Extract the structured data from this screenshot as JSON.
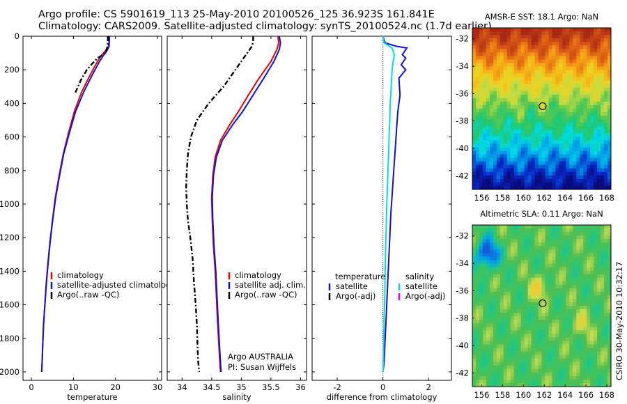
{
  "header": {
    "line1": "Argo profile: CS 5901619_113 25-May-2010 20100526_125 36.923S 161.841E",
    "line2": "Climatology: CARS2009. Satellite-adjusted climatology: synTS_20100524.nc (1.7d earlier)"
  },
  "stamp": "CSIRO 30-May-2010 10:32:17",
  "colors": {
    "climatology": "#ee0000",
    "satellite": "#1010dd",
    "argo": "#000000",
    "sal_satellite": "#00e0e0",
    "sal_argo": "#ee00ee"
  },
  "chart_data": [
    {
      "type": "line",
      "id": "temperature",
      "xlabel": "temperature",
      "ylabel": "",
      "xlim": [
        -2,
        31
      ],
      "ylim": [
        2050,
        0
      ],
      "xticks": [
        0,
        10,
        20,
        30
      ],
      "yticks": [
        0,
        200,
        400,
        600,
        800,
        1000,
        1200,
        1400,
        1600,
        1800,
        2000
      ],
      "legend": {
        "placement": "lower-right",
        "entries": [
          "climatology",
          "satellite-adjusted climatology",
          "Argo(..raw -QC)"
        ]
      },
      "series": [
        {
          "name": "climatology",
          "color": "#ee0000",
          "style": "solid",
          "x": [
            18.6,
            18.4,
            17.5,
            16.5,
            15.5,
            14.0,
            12.0,
            10.2,
            8.8,
            7.6,
            6.6,
            5.7,
            5.0,
            4.4,
            3.9,
            3.5,
            3.2,
            2.9,
            2.7,
            2.55,
            2.45
          ],
          "y": [
            0,
            60,
            90,
            120,
            160,
            230,
            330,
            450,
            580,
            700,
            830,
            960,
            1100,
            1230,
            1360,
            1480,
            1600,
            1720,
            1840,
            1950,
            2000
          ]
        },
        {
          "name": "satellite-adjusted climatology",
          "color": "#1010dd",
          "style": "solid",
          "x": [
            18.6,
            18.5,
            17.9,
            17.0,
            16.0,
            14.5,
            12.5,
            10.5,
            9.0,
            7.7,
            6.7,
            5.8,
            5.05,
            4.45,
            3.95,
            3.55,
            3.2,
            2.9,
            2.7,
            2.55,
            2.45
          ],
          "y": [
            0,
            60,
            90,
            120,
            160,
            230,
            330,
            450,
            580,
            700,
            830,
            960,
            1100,
            1230,
            1360,
            1480,
            1600,
            1720,
            1840,
            1950,
            2000
          ]
        },
        {
          "name": "Argo(..raw -QC)",
          "color": "#000000",
          "style": "dashdot",
          "x": [
            18.2,
            18.2,
            18.1,
            17.8,
            17.0,
            15.8,
            14.6,
            13.2,
            11.8,
            10.4
          ],
          "y": [
            0,
            30,
            60,
            90,
            110,
            130,
            160,
            200,
            260,
            340
          ]
        }
      ]
    },
    {
      "type": "line",
      "id": "salinity",
      "xlabel": "salinity",
      "ylabel": "",
      "xlim": [
        33.75,
        36.1
      ],
      "ylim": [
        2050,
        0
      ],
      "xticks": [
        34,
        34.5,
        35,
        35.5,
        36
      ],
      "legend": {
        "placement": "lower-right",
        "entries": [
          "climatology",
          "satellite adj. clim.",
          "Argo(..raw -QC)"
        ]
      },
      "annotation": [
        "Argo AUSTRALIA",
        "PI: Susan Wijffels"
      ],
      "series": [
        {
          "name": "climatology",
          "color": "#ee0000",
          "style": "solid",
          "x": [
            35.62,
            35.63,
            35.6,
            35.5,
            35.3,
            35.12,
            34.95,
            34.8,
            34.65,
            34.56,
            34.52,
            34.5,
            34.51,
            34.53,
            34.56,
            34.58,
            34.6,
            34.62,
            34.64,
            34.65
          ],
          "y": [
            0,
            40,
            80,
            150,
            250,
            350,
            450,
            530,
            620,
            720,
            830,
            960,
            1100,
            1250,
            1400,
            1550,
            1700,
            1830,
            1950,
            2000
          ]
        },
        {
          "name": "satellite adj. clim.",
          "color": "#1010dd",
          "style": "solid",
          "x": [
            35.64,
            35.66,
            35.64,
            35.55,
            35.38,
            35.2,
            35.02,
            34.85,
            34.68,
            34.58,
            34.53,
            34.51,
            34.52,
            34.54,
            34.57,
            34.59,
            34.61,
            34.63,
            34.65,
            34.66
          ],
          "y": [
            0,
            40,
            80,
            150,
            250,
            350,
            450,
            530,
            620,
            720,
            830,
            960,
            1100,
            1250,
            1400,
            1550,
            1700,
            1830,
            1950,
            2000
          ]
        },
        {
          "name": "Argo(..raw -QC)",
          "color": "#000000",
          "style": "dashdot",
          "x": [
            35.2,
            35.2,
            35.18,
            35.0,
            34.7,
            34.45,
            34.25,
            34.15,
            34.1,
            34.08,
            34.07,
            34.08,
            34.1,
            34.14,
            34.18,
            34.2,
            34.23,
            34.25,
            34.26,
            34.27,
            34.29
          ],
          "y": [
            0,
            30,
            60,
            150,
            300,
            400,
            500,
            600,
            700,
            800,
            900,
            1000,
            1100,
            1200,
            1330,
            1460,
            1600,
            1720,
            1830,
            1930,
            2000
          ]
        }
      ]
    },
    {
      "type": "line",
      "id": "difference",
      "xlabel": "difference from climatology",
      "ylabel": "",
      "xlim": [
        -3.1,
        3.0
      ],
      "ylim": [
        2050,
        0
      ],
      "xticks": [
        -2,
        0,
        2
      ],
      "legend": {
        "placement": "lower-right",
        "columns": [
          "temperature",
          "salinity"
        ],
        "entries": [
          "satellite",
          "Argo(-adj)",
          "satellite",
          "Argo(-adj)"
        ]
      },
      "series": [
        {
          "name": "temperature satellite",
          "color": "#1010dd",
          "style": "solid",
          "x": [
            0.0,
            0.1,
            0.6,
            1.05,
            0.85,
            1.0,
            0.8,
            1.0,
            0.7,
            0.75,
            0.65,
            0.6,
            0.55,
            0.5,
            0.45,
            0.4,
            0.35,
            0.3,
            0.25,
            0.2,
            0.15,
            0.1,
            0.05,
            0.0
          ],
          "y": [
            0,
            40,
            60,
            70,
            110,
            130,
            170,
            200,
            250,
            350,
            450,
            550,
            650,
            750,
            850,
            950,
            1050,
            1200,
            1350,
            1500,
            1650,
            1800,
            1950,
            2000
          ]
        },
        {
          "name": "salinity satellite",
          "color": "#00e0e0",
          "style": "solid",
          "x": [
            0.0,
            0.05,
            0.4,
            0.5,
            0.45,
            0.4,
            0.38,
            0.35,
            0.32,
            0.3,
            0.27,
            0.25,
            0.22,
            0.2,
            0.17,
            0.15,
            0.12,
            0.1,
            0.08,
            0.05,
            0.03,
            0.01
          ],
          "y": [
            0,
            40,
            70,
            110,
            150,
            200,
            260,
            330,
            400,
            500,
            600,
            700,
            800,
            900,
            1000,
            1100,
            1250,
            1400,
            1550,
            1700,
            1850,
            2000
          ]
        }
      ]
    }
  ],
  "maps": [
    {
      "id": "sst",
      "title": "AMSR-E SST: 18.1 Argo: NaN",
      "xticks": [
        156,
        158,
        160,
        162,
        164,
        166,
        168
      ],
      "yticks": [
        -32,
        -34,
        -36,
        -38,
        -40,
        -42
      ],
      "marker": {
        "lon": 161.84,
        "lat": -36.92
      }
    },
    {
      "id": "sla",
      "title": "Altimetric SLA: 0.11 Argo: NaN",
      "xticks": [
        156,
        158,
        160,
        162,
        164,
        166,
        168
      ],
      "yticks": [
        -32,
        -34,
        -36,
        -38,
        -40,
        -42
      ],
      "marker": {
        "lon": 161.84,
        "lat": -36.92
      }
    }
  ]
}
